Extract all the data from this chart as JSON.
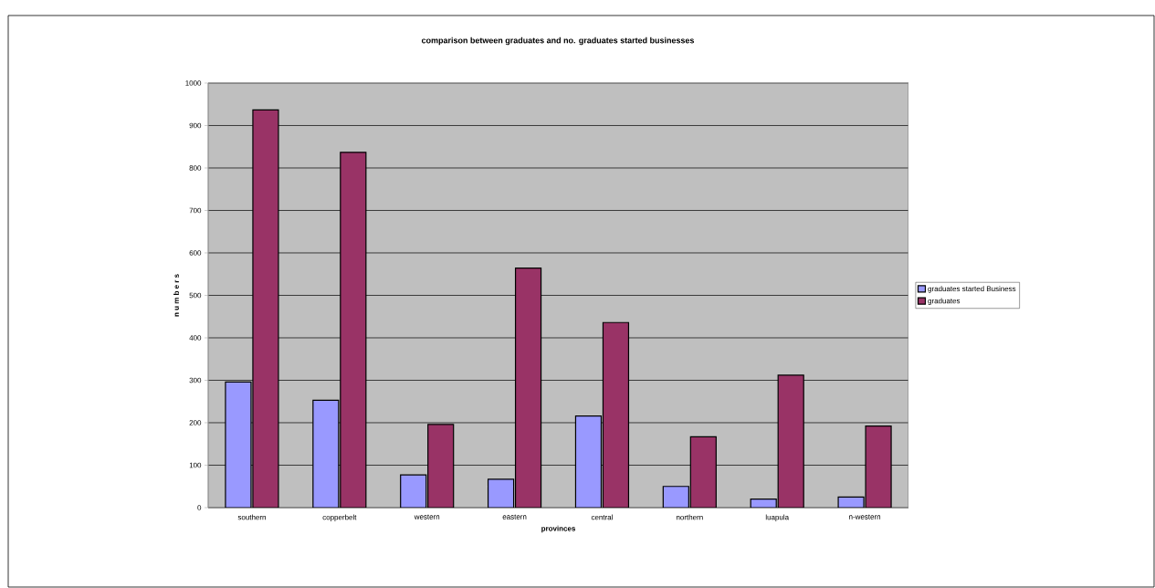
{
  "chart_data": {
    "type": "bar",
    "title": "comparison between  graduates and no. graduates started businesses",
    "xlabel": "provinces",
    "ylabel": "n u m b e r s",
    "categories": [
      "southern",
      "copperbelt",
      "western",
      "eastern",
      "central",
      "northern",
      "luapula",
      "n-western"
    ],
    "series": [
      {
        "name": "graduates started Business",
        "color": "#9999ff",
        "values": [
          296,
          253,
          77,
          67,
          216,
          50,
          20,
          25
        ]
      },
      {
        "name": "graduates",
        "color": "#993366",
        "values": [
          937,
          837,
          196,
          564,
          436,
          167,
          312,
          192
        ]
      }
    ],
    "ylim": [
      0,
      1000
    ],
    "yticks": [
      0,
      100,
      200,
      300,
      400,
      500,
      600,
      700,
      800,
      900,
      1000
    ],
    "grid": "y",
    "legend": "right"
  }
}
